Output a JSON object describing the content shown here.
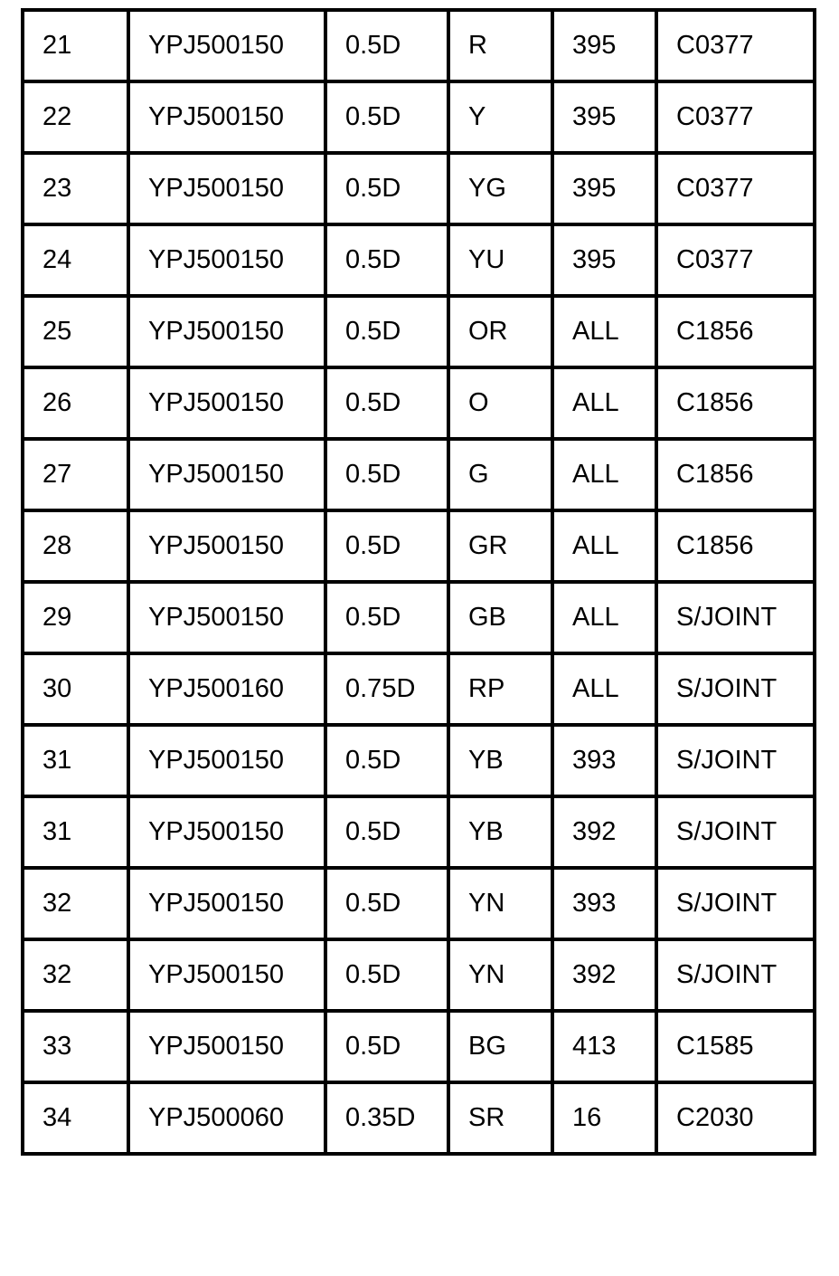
{
  "table": {
    "rows": [
      [
        "21",
        "YPJ500150",
        "0.5D",
        "R",
        "395",
        "C0377"
      ],
      [
        "22",
        "YPJ500150",
        "0.5D",
        "Y",
        "395",
        "C0377"
      ],
      [
        "23",
        "YPJ500150",
        "0.5D",
        "YG",
        "395",
        "C0377"
      ],
      [
        "24",
        "YPJ500150",
        "0.5D",
        "YU",
        "395",
        "C0377"
      ],
      [
        "25",
        "YPJ500150",
        "0.5D",
        "OR",
        "ALL",
        "C1856"
      ],
      [
        "26",
        "YPJ500150",
        "0.5D",
        "O",
        "ALL",
        "C1856"
      ],
      [
        "27",
        "YPJ500150",
        "0.5D",
        "G",
        "ALL",
        "C1856"
      ],
      [
        "28",
        "YPJ500150",
        "0.5D",
        "GR",
        "ALL",
        "C1856"
      ],
      [
        "29",
        "YPJ500150",
        "0.5D",
        "GB",
        "ALL",
        "S/JOINT"
      ],
      [
        "30",
        "YPJ500160",
        "0.75D",
        "RP",
        "ALL",
        "S/JOINT"
      ],
      [
        "31",
        "YPJ500150",
        "0.5D",
        "YB",
        "393",
        "S/JOINT"
      ],
      [
        "31",
        "YPJ500150",
        "0.5D",
        "YB",
        "392",
        "S/JOINT"
      ],
      [
        "32",
        "YPJ500150",
        "0.5D",
        "YN",
        "393",
        "S/JOINT"
      ],
      [
        "32",
        "YPJ500150",
        "0.5D",
        "YN",
        "392",
        "S/JOINT"
      ],
      [
        "33",
        "YPJ500150",
        "0.5D",
        "BG",
        "413",
        "C1585"
      ],
      [
        "34",
        "YPJ500060",
        "0.35D",
        "SR",
        "16",
        "C2030"
      ]
    ]
  }
}
